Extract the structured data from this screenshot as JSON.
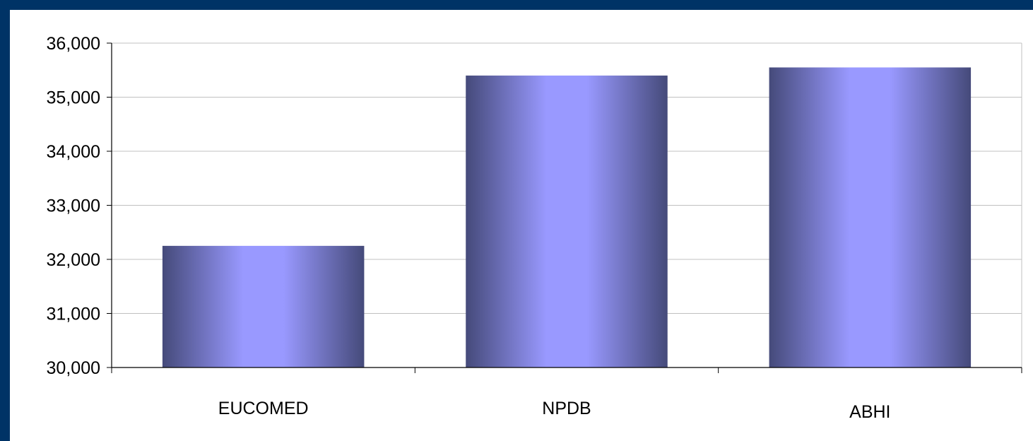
{
  "colors": {
    "border": "#003366",
    "bar_dark": "#454a7a",
    "bar_light": "#9999ff",
    "gridline": "#c0c0c0"
  },
  "chart_data": {
    "type": "bar",
    "title": "",
    "xlabel": "",
    "ylabel": "",
    "categories": [
      "EUCOMED",
      "NPDB",
      "ABHI"
    ],
    "values": [
      32250,
      35400,
      35550
    ],
    "ylim": [
      30000,
      36000
    ],
    "yticks": [
      30000,
      31000,
      32000,
      33000,
      34000,
      35000,
      36000
    ],
    "ytick_labels": [
      "30,000",
      "31,000",
      "32,000",
      "33,000",
      "34,000",
      "35,000",
      "36,000"
    ],
    "grid": true,
    "legend": "none"
  }
}
